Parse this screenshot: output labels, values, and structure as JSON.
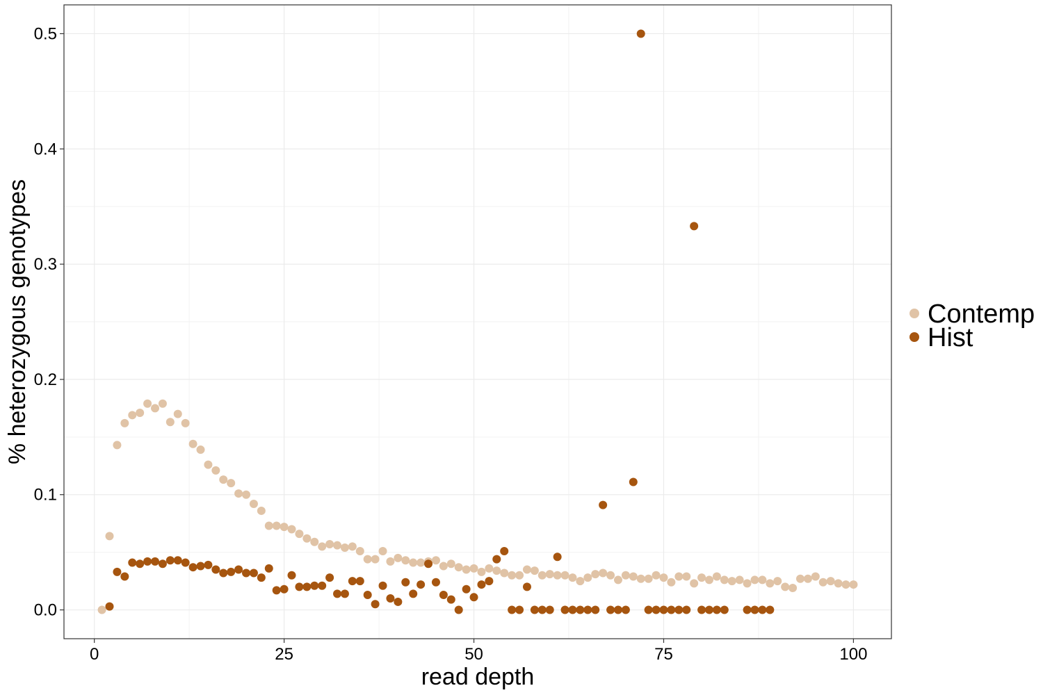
{
  "chart_data": {
    "type": "scatter",
    "title": "",
    "xlabel": "read depth",
    "ylabel": "% heterozygous genotypes",
    "xlim": [
      -4,
      105
    ],
    "ylim": [
      -0.025,
      0.525
    ],
    "x_ticks": [
      0,
      25,
      50,
      75,
      100
    ],
    "y_ticks": [
      0.0,
      0.1,
      0.2,
      0.3,
      0.4,
      0.5
    ],
    "x_tick_labels": [
      "0",
      "25",
      "50",
      "75",
      "100"
    ],
    "y_tick_labels": [
      "0.0",
      "0.1",
      "0.2",
      "0.3",
      "0.4",
      "0.5"
    ],
    "grid": true,
    "legend_position": "right",
    "series": [
      {
        "name": "Contemp",
        "color": "#E0C3A6",
        "points": [
          [
            1,
            0.0
          ],
          [
            2,
            0.064
          ],
          [
            3,
            0.143
          ],
          [
            4,
            0.162
          ],
          [
            5,
            0.169
          ],
          [
            6,
            0.171
          ],
          [
            7,
            0.179
          ],
          [
            8,
            0.175
          ],
          [
            9,
            0.179
          ],
          [
            10,
            0.163
          ],
          [
            11,
            0.17
          ],
          [
            12,
            0.162
          ],
          [
            13,
            0.144
          ],
          [
            14,
            0.139
          ],
          [
            15,
            0.126
          ],
          [
            16,
            0.121
          ],
          [
            17,
            0.113
          ],
          [
            18,
            0.11
          ],
          [
            19,
            0.101
          ],
          [
            20,
            0.1
          ],
          [
            21,
            0.092
          ],
          [
            22,
            0.086
          ],
          [
            23,
            0.073
          ],
          [
            24,
            0.073
          ],
          [
            25,
            0.072
          ],
          [
            26,
            0.07
          ],
          [
            27,
            0.066
          ],
          [
            28,
            0.062
          ],
          [
            29,
            0.059
          ],
          [
            30,
            0.055
          ],
          [
            31,
            0.057
          ],
          [
            32,
            0.056
          ],
          [
            33,
            0.054
          ],
          [
            34,
            0.055
          ],
          [
            35,
            0.051
          ],
          [
            36,
            0.044
          ],
          [
            37,
            0.044
          ],
          [
            38,
            0.051
          ],
          [
            39,
            0.042
          ],
          [
            40,
            0.045
          ],
          [
            41,
            0.043
          ],
          [
            42,
            0.041
          ],
          [
            43,
            0.041
          ],
          [
            44,
            0.042
          ],
          [
            45,
            0.043
          ],
          [
            46,
            0.038
          ],
          [
            47,
            0.04
          ],
          [
            48,
            0.037
          ],
          [
            49,
            0.035
          ],
          [
            50,
            0.036
          ],
          [
            51,
            0.033
          ],
          [
            52,
            0.036
          ],
          [
            53,
            0.034
          ],
          [
            54,
            0.032
          ],
          [
            55,
            0.03
          ],
          [
            56,
            0.03
          ],
          [
            57,
            0.035
          ],
          [
            58,
            0.034
          ],
          [
            59,
            0.03
          ],
          [
            60,
            0.031
          ],
          [
            61,
            0.03
          ],
          [
            62,
            0.03
          ],
          [
            63,
            0.028
          ],
          [
            64,
            0.025
          ],
          [
            65,
            0.028
          ],
          [
            66,
            0.031
          ],
          [
            67,
            0.032
          ],
          [
            68,
            0.03
          ],
          [
            69,
            0.026
          ],
          [
            70,
            0.03
          ],
          [
            71,
            0.029
          ],
          [
            72,
            0.027
          ],
          [
            73,
            0.027
          ],
          [
            74,
            0.03
          ],
          [
            75,
            0.028
          ],
          [
            76,
            0.024
          ],
          [
            77,
            0.029
          ],
          [
            78,
            0.029
          ],
          [
            79,
            0.023
          ],
          [
            80,
            0.028
          ],
          [
            81,
            0.026
          ],
          [
            82,
            0.029
          ],
          [
            83,
            0.026
          ],
          [
            84,
            0.025
          ],
          [
            85,
            0.026
          ],
          [
            86,
            0.023
          ],
          [
            87,
            0.026
          ],
          [
            88,
            0.026
          ],
          [
            89,
            0.023
          ],
          [
            90,
            0.025
          ],
          [
            91,
            0.02
          ],
          [
            92,
            0.019
          ],
          [
            93,
            0.027
          ],
          [
            94,
            0.027
          ],
          [
            95,
            0.029
          ],
          [
            96,
            0.024
          ],
          [
            97,
            0.025
          ],
          [
            98,
            0.023
          ],
          [
            99,
            0.022
          ],
          [
            100,
            0.022
          ]
        ]
      },
      {
        "name": "Hist",
        "color": "#A6550F",
        "points": [
          [
            2,
            0.003
          ],
          [
            3,
            0.033
          ],
          [
            4,
            0.029
          ],
          [
            5,
            0.041
          ],
          [
            6,
            0.04
          ],
          [
            7,
            0.042
          ],
          [
            8,
            0.042
          ],
          [
            9,
            0.04
          ],
          [
            10,
            0.043
          ],
          [
            11,
            0.043
          ],
          [
            12,
            0.041
          ],
          [
            13,
            0.037
          ],
          [
            14,
            0.038
          ],
          [
            15,
            0.039
          ],
          [
            16,
            0.035
          ],
          [
            17,
            0.032
          ],
          [
            18,
            0.033
          ],
          [
            19,
            0.035
          ],
          [
            20,
            0.032
          ],
          [
            21,
            0.032
          ],
          [
            22,
            0.028
          ],
          [
            23,
            0.036
          ],
          [
            24,
            0.017
          ],
          [
            25,
            0.018
          ],
          [
            26,
            0.03
          ],
          [
            27,
            0.02
          ],
          [
            28,
            0.02
          ],
          [
            29,
            0.021
          ],
          [
            30,
            0.021
          ],
          [
            31,
            0.028
          ],
          [
            32,
            0.014
          ],
          [
            33,
            0.014
          ],
          [
            34,
            0.025
          ],
          [
            35,
            0.025
          ],
          [
            36,
            0.013
          ],
          [
            37,
            0.005
          ],
          [
            38,
            0.021
          ],
          [
            39,
            0.01
          ],
          [
            40,
            0.007
          ],
          [
            41,
            0.024
          ],
          [
            42,
            0.014
          ],
          [
            43,
            0.022
          ],
          [
            44,
            0.04
          ],
          [
            45,
            0.024
          ],
          [
            46,
            0.013
          ],
          [
            47,
            0.009
          ],
          [
            48,
            0.0
          ],
          [
            49,
            0.018
          ],
          [
            50,
            0.011
          ],
          [
            51,
            0.022
          ],
          [
            52,
            0.025
          ],
          [
            53,
            0.044
          ],
          [
            54,
            0.051
          ],
          [
            55,
            0.0
          ],
          [
            56,
            0.0
          ],
          [
            57,
            0.02
          ],
          [
            58,
            0.0
          ],
          [
            59,
            0.0
          ],
          [
            60,
            0.0
          ],
          [
            61,
            0.046
          ],
          [
            62,
            0.0
          ],
          [
            63,
            0.0
          ],
          [
            64,
            0.0
          ],
          [
            65,
            0.0
          ],
          [
            66,
            0.0
          ],
          [
            67,
            0.091
          ],
          [
            68,
            0.0
          ],
          [
            69,
            0.0
          ],
          [
            70,
            0.0
          ],
          [
            71,
            0.111
          ],
          [
            72,
            0.5
          ],
          [
            73,
            0.0
          ],
          [
            74,
            0.0
          ],
          [
            75,
            0.0
          ],
          [
            76,
            0.0
          ],
          [
            77,
            0.0
          ],
          [
            78,
            0.0
          ],
          [
            79,
            0.333
          ],
          [
            80,
            0.0
          ],
          [
            81,
            0.0
          ],
          [
            82,
            0.0
          ],
          [
            83,
            0.0
          ],
          [
            86,
            0.0
          ],
          [
            87,
            0.0
          ],
          [
            88,
            0.0
          ],
          [
            89,
            0.0
          ]
        ]
      }
    ]
  }
}
